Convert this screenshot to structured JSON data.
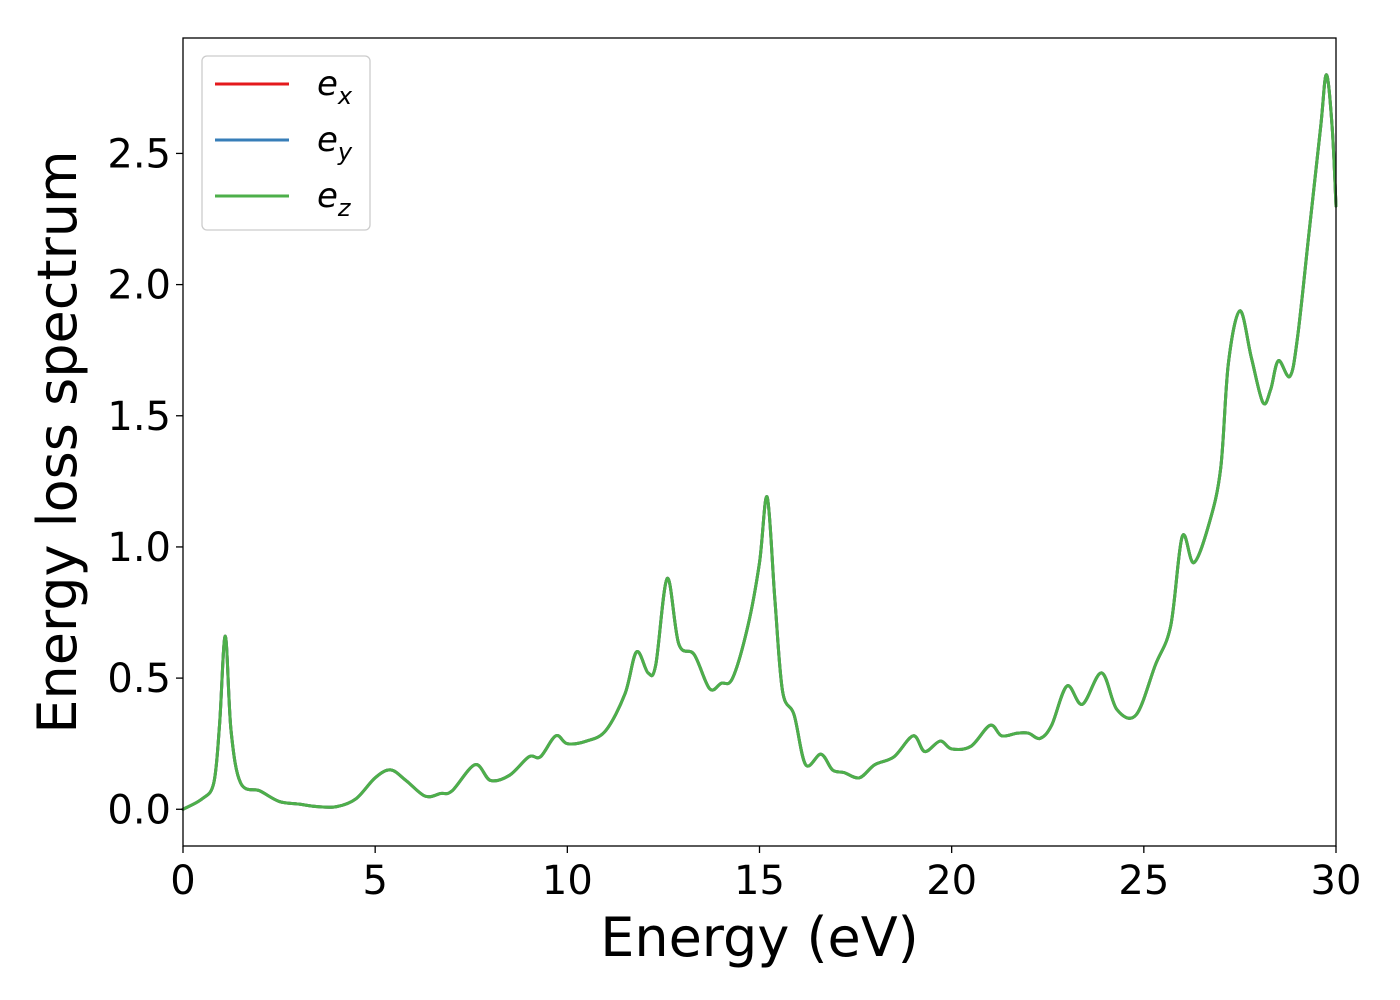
{
  "chart_data": {
    "type": "line",
    "title": "",
    "xlabel": "Energy (eV)",
    "ylabel": "Energy loss spectrum",
    "xlim": [
      0,
      30
    ],
    "ylim": [
      -0.14,
      2.94
    ],
    "xticks": [
      0,
      5,
      10,
      15,
      20,
      25,
      30
    ],
    "xtick_labels": [
      "0",
      "5",
      "10",
      "15",
      "20",
      "25",
      "30"
    ],
    "yticks": [
      0.0,
      0.5,
      1.0,
      1.5,
      2.0,
      2.5
    ],
    "ytick_labels": [
      "0.0",
      "0.5",
      "1.0",
      "1.5",
      "2.0",
      "2.5"
    ],
    "grid": false,
    "legend_position": "top-left",
    "series": [
      {
        "name": "e",
        "subscript": "x",
        "color": "#e41a1c",
        "x": [
          0,
          0.5,
          0.8,
          0.95,
          1.1,
          1.25,
          1.5,
          2.0,
          2.5,
          3.0,
          3.5,
          4.0,
          4.5,
          5.0,
          5.4,
          5.8,
          6.3,
          6.7,
          7.0,
          7.6,
          8.0,
          8.5,
          9.0,
          9.3,
          9.7,
          10.0,
          10.5,
          11.0,
          11.5,
          11.8,
          12.1,
          12.3,
          12.6,
          12.9,
          13.3,
          13.7,
          14.0,
          14.3,
          14.7,
          15.0,
          15.2,
          15.4,
          15.6,
          15.9,
          16.2,
          16.6,
          16.9,
          17.2,
          17.6,
          18.0,
          18.5,
          19.0,
          19.3,
          19.7,
          20.0,
          20.5,
          21.0,
          21.3,
          21.7,
          22.0,
          22.3,
          22.6,
          23.0,
          23.4,
          23.9,
          24.3,
          24.8,
          25.3,
          25.7,
          26.0,
          26.3,
          26.7,
          27.0,
          27.2,
          27.5,
          27.8,
          28.1,
          28.3,
          28.5,
          28.8,
          29.0,
          29.3,
          29.6,
          29.75,
          29.9,
          30.0
        ],
        "values": [
          0.0,
          0.04,
          0.1,
          0.32,
          0.66,
          0.3,
          0.1,
          0.07,
          0.03,
          0.02,
          0.01,
          0.01,
          0.04,
          0.12,
          0.15,
          0.11,
          0.05,
          0.06,
          0.07,
          0.17,
          0.11,
          0.13,
          0.2,
          0.2,
          0.28,
          0.25,
          0.26,
          0.3,
          0.44,
          0.6,
          0.52,
          0.55,
          0.88,
          0.63,
          0.59,
          0.46,
          0.48,
          0.5,
          0.7,
          0.94,
          1.19,
          0.8,
          0.45,
          0.36,
          0.17,
          0.21,
          0.15,
          0.14,
          0.12,
          0.17,
          0.2,
          0.28,
          0.22,
          0.26,
          0.23,
          0.24,
          0.32,
          0.28,
          0.29,
          0.29,
          0.27,
          0.32,
          0.47,
          0.4,
          0.52,
          0.38,
          0.36,
          0.55,
          0.7,
          1.04,
          0.94,
          1.09,
          1.3,
          1.7,
          1.9,
          1.72,
          1.55,
          1.6,
          1.71,
          1.65,
          1.8,
          2.2,
          2.6,
          2.8,
          2.6,
          2.3
        ]
      },
      {
        "name": "e",
        "subscript": "y",
        "color": "#377eb8",
        "x": [
          0,
          0.5,
          0.8,
          0.95,
          1.1,
          1.25,
          1.5,
          2.0,
          2.5,
          3.0,
          3.5,
          4.0,
          4.5,
          5.0,
          5.4,
          5.8,
          6.3,
          6.7,
          7.0,
          7.6,
          8.0,
          8.5,
          9.0,
          9.3,
          9.7,
          10.0,
          10.5,
          11.0,
          11.5,
          11.8,
          12.1,
          12.3,
          12.6,
          12.9,
          13.3,
          13.7,
          14.0,
          14.3,
          14.7,
          15.0,
          15.2,
          15.4,
          15.6,
          15.9,
          16.2,
          16.6,
          16.9,
          17.2,
          17.6,
          18.0,
          18.5,
          19.0,
          19.3,
          19.7,
          20.0,
          20.5,
          21.0,
          21.3,
          21.7,
          22.0,
          22.3,
          22.6,
          23.0,
          23.4,
          23.9,
          24.3,
          24.8,
          25.3,
          25.7,
          26.0,
          26.3,
          26.7,
          27.0,
          27.2,
          27.5,
          27.8,
          28.1,
          28.3,
          28.5,
          28.8,
          29.0,
          29.3,
          29.6,
          29.75,
          29.9,
          30.0
        ],
        "values": [
          0.0,
          0.04,
          0.1,
          0.32,
          0.66,
          0.3,
          0.1,
          0.07,
          0.03,
          0.02,
          0.01,
          0.01,
          0.04,
          0.12,
          0.15,
          0.11,
          0.05,
          0.06,
          0.07,
          0.17,
          0.11,
          0.13,
          0.2,
          0.2,
          0.28,
          0.25,
          0.26,
          0.3,
          0.44,
          0.6,
          0.52,
          0.55,
          0.88,
          0.63,
          0.59,
          0.46,
          0.48,
          0.5,
          0.7,
          0.94,
          1.19,
          0.8,
          0.45,
          0.36,
          0.17,
          0.21,
          0.15,
          0.14,
          0.12,
          0.17,
          0.2,
          0.28,
          0.22,
          0.26,
          0.23,
          0.24,
          0.32,
          0.28,
          0.29,
          0.29,
          0.27,
          0.32,
          0.47,
          0.4,
          0.52,
          0.38,
          0.36,
          0.55,
          0.7,
          1.04,
          0.94,
          1.09,
          1.3,
          1.7,
          1.9,
          1.72,
          1.55,
          1.6,
          1.71,
          1.65,
          1.8,
          2.2,
          2.6,
          2.8,
          2.6,
          2.3
        ]
      },
      {
        "name": "e",
        "subscript": "z",
        "color": "#4daf4a",
        "x": [
          0,
          0.5,
          0.8,
          0.95,
          1.1,
          1.25,
          1.5,
          2.0,
          2.5,
          3.0,
          3.5,
          4.0,
          4.5,
          5.0,
          5.4,
          5.8,
          6.3,
          6.7,
          7.0,
          7.6,
          8.0,
          8.5,
          9.0,
          9.3,
          9.7,
          10.0,
          10.5,
          11.0,
          11.5,
          11.8,
          12.1,
          12.3,
          12.6,
          12.9,
          13.3,
          13.7,
          14.0,
          14.3,
          14.7,
          15.0,
          15.2,
          15.4,
          15.6,
          15.9,
          16.2,
          16.6,
          16.9,
          17.2,
          17.6,
          18.0,
          18.5,
          19.0,
          19.3,
          19.7,
          20.0,
          20.5,
          21.0,
          21.3,
          21.7,
          22.0,
          22.3,
          22.6,
          23.0,
          23.4,
          23.9,
          24.3,
          24.8,
          25.3,
          25.7,
          26.0,
          26.3,
          26.7,
          27.0,
          27.2,
          27.5,
          27.8,
          28.1,
          28.3,
          28.5,
          28.8,
          29.0,
          29.3,
          29.6,
          29.75,
          29.9,
          30.0
        ],
        "values": [
          0.0,
          0.04,
          0.1,
          0.32,
          0.66,
          0.3,
          0.1,
          0.07,
          0.03,
          0.02,
          0.01,
          0.01,
          0.04,
          0.12,
          0.15,
          0.11,
          0.05,
          0.06,
          0.07,
          0.17,
          0.11,
          0.13,
          0.2,
          0.2,
          0.28,
          0.25,
          0.26,
          0.3,
          0.44,
          0.6,
          0.52,
          0.55,
          0.88,
          0.63,
          0.59,
          0.46,
          0.48,
          0.5,
          0.7,
          0.94,
          1.19,
          0.8,
          0.45,
          0.36,
          0.17,
          0.21,
          0.15,
          0.14,
          0.12,
          0.17,
          0.2,
          0.28,
          0.22,
          0.26,
          0.23,
          0.24,
          0.32,
          0.28,
          0.29,
          0.29,
          0.27,
          0.32,
          0.47,
          0.4,
          0.52,
          0.38,
          0.36,
          0.55,
          0.7,
          1.04,
          0.94,
          1.09,
          1.3,
          1.7,
          1.9,
          1.72,
          1.55,
          1.6,
          1.71,
          1.65,
          1.8,
          2.2,
          2.6,
          2.8,
          2.6,
          2.3
        ]
      }
    ]
  }
}
